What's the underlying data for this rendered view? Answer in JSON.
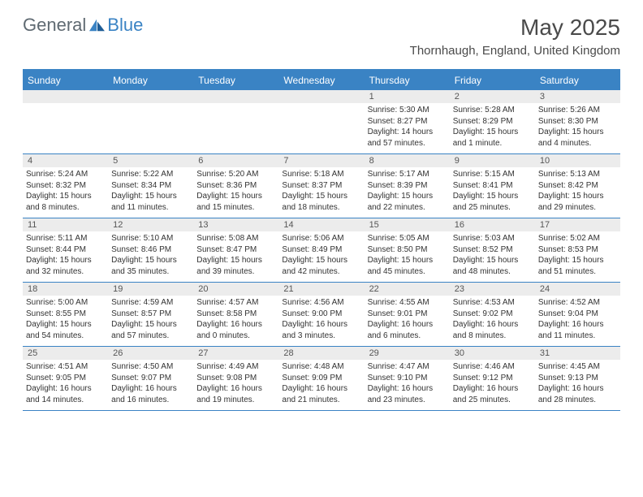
{
  "logo": {
    "general": "General",
    "blue": "Blue"
  },
  "title": "May 2025",
  "location": "Thornhaugh, England, United Kingdom",
  "colors": {
    "accent": "#3a83c4",
    "gray_row": "#ececec",
    "text_dark": "#4a4a4a",
    "text_body": "#333333",
    "logo_gray": "#5f6a72"
  },
  "day_headers": [
    "Sunday",
    "Monday",
    "Tuesday",
    "Wednesday",
    "Thursday",
    "Friday",
    "Saturday"
  ],
  "weeks": [
    [
      {
        "n": "",
        "lines": []
      },
      {
        "n": "",
        "lines": []
      },
      {
        "n": "",
        "lines": []
      },
      {
        "n": "",
        "lines": []
      },
      {
        "n": "1",
        "lines": [
          "Sunrise: 5:30 AM",
          "Sunset: 8:27 PM",
          "Daylight: 14 hours",
          "and 57 minutes."
        ]
      },
      {
        "n": "2",
        "lines": [
          "Sunrise: 5:28 AM",
          "Sunset: 8:29 PM",
          "Daylight: 15 hours",
          "and 1 minute."
        ]
      },
      {
        "n": "3",
        "lines": [
          "Sunrise: 5:26 AM",
          "Sunset: 8:30 PM",
          "Daylight: 15 hours",
          "and 4 minutes."
        ]
      }
    ],
    [
      {
        "n": "4",
        "lines": [
          "Sunrise: 5:24 AM",
          "Sunset: 8:32 PM",
          "Daylight: 15 hours",
          "and 8 minutes."
        ]
      },
      {
        "n": "5",
        "lines": [
          "Sunrise: 5:22 AM",
          "Sunset: 8:34 PM",
          "Daylight: 15 hours",
          "and 11 minutes."
        ]
      },
      {
        "n": "6",
        "lines": [
          "Sunrise: 5:20 AM",
          "Sunset: 8:36 PM",
          "Daylight: 15 hours",
          "and 15 minutes."
        ]
      },
      {
        "n": "7",
        "lines": [
          "Sunrise: 5:18 AM",
          "Sunset: 8:37 PM",
          "Daylight: 15 hours",
          "and 18 minutes."
        ]
      },
      {
        "n": "8",
        "lines": [
          "Sunrise: 5:17 AM",
          "Sunset: 8:39 PM",
          "Daylight: 15 hours",
          "and 22 minutes."
        ]
      },
      {
        "n": "9",
        "lines": [
          "Sunrise: 5:15 AM",
          "Sunset: 8:41 PM",
          "Daylight: 15 hours",
          "and 25 minutes."
        ]
      },
      {
        "n": "10",
        "lines": [
          "Sunrise: 5:13 AM",
          "Sunset: 8:42 PM",
          "Daylight: 15 hours",
          "and 29 minutes."
        ]
      }
    ],
    [
      {
        "n": "11",
        "lines": [
          "Sunrise: 5:11 AM",
          "Sunset: 8:44 PM",
          "Daylight: 15 hours",
          "and 32 minutes."
        ]
      },
      {
        "n": "12",
        "lines": [
          "Sunrise: 5:10 AM",
          "Sunset: 8:46 PM",
          "Daylight: 15 hours",
          "and 35 minutes."
        ]
      },
      {
        "n": "13",
        "lines": [
          "Sunrise: 5:08 AM",
          "Sunset: 8:47 PM",
          "Daylight: 15 hours",
          "and 39 minutes."
        ]
      },
      {
        "n": "14",
        "lines": [
          "Sunrise: 5:06 AM",
          "Sunset: 8:49 PM",
          "Daylight: 15 hours",
          "and 42 minutes."
        ]
      },
      {
        "n": "15",
        "lines": [
          "Sunrise: 5:05 AM",
          "Sunset: 8:50 PM",
          "Daylight: 15 hours",
          "and 45 minutes."
        ]
      },
      {
        "n": "16",
        "lines": [
          "Sunrise: 5:03 AM",
          "Sunset: 8:52 PM",
          "Daylight: 15 hours",
          "and 48 minutes."
        ]
      },
      {
        "n": "17",
        "lines": [
          "Sunrise: 5:02 AM",
          "Sunset: 8:53 PM",
          "Daylight: 15 hours",
          "and 51 minutes."
        ]
      }
    ],
    [
      {
        "n": "18",
        "lines": [
          "Sunrise: 5:00 AM",
          "Sunset: 8:55 PM",
          "Daylight: 15 hours",
          "and 54 minutes."
        ]
      },
      {
        "n": "19",
        "lines": [
          "Sunrise: 4:59 AM",
          "Sunset: 8:57 PM",
          "Daylight: 15 hours",
          "and 57 minutes."
        ]
      },
      {
        "n": "20",
        "lines": [
          "Sunrise: 4:57 AM",
          "Sunset: 8:58 PM",
          "Daylight: 16 hours",
          "and 0 minutes."
        ]
      },
      {
        "n": "21",
        "lines": [
          "Sunrise: 4:56 AM",
          "Sunset: 9:00 PM",
          "Daylight: 16 hours",
          "and 3 minutes."
        ]
      },
      {
        "n": "22",
        "lines": [
          "Sunrise: 4:55 AM",
          "Sunset: 9:01 PM",
          "Daylight: 16 hours",
          "and 6 minutes."
        ]
      },
      {
        "n": "23",
        "lines": [
          "Sunrise: 4:53 AM",
          "Sunset: 9:02 PM",
          "Daylight: 16 hours",
          "and 8 minutes."
        ]
      },
      {
        "n": "24",
        "lines": [
          "Sunrise: 4:52 AM",
          "Sunset: 9:04 PM",
          "Daylight: 16 hours",
          "and 11 minutes."
        ]
      }
    ],
    [
      {
        "n": "25",
        "lines": [
          "Sunrise: 4:51 AM",
          "Sunset: 9:05 PM",
          "Daylight: 16 hours",
          "and 14 minutes."
        ]
      },
      {
        "n": "26",
        "lines": [
          "Sunrise: 4:50 AM",
          "Sunset: 9:07 PM",
          "Daylight: 16 hours",
          "and 16 minutes."
        ]
      },
      {
        "n": "27",
        "lines": [
          "Sunrise: 4:49 AM",
          "Sunset: 9:08 PM",
          "Daylight: 16 hours",
          "and 19 minutes."
        ]
      },
      {
        "n": "28",
        "lines": [
          "Sunrise: 4:48 AM",
          "Sunset: 9:09 PM",
          "Daylight: 16 hours",
          "and 21 minutes."
        ]
      },
      {
        "n": "29",
        "lines": [
          "Sunrise: 4:47 AM",
          "Sunset: 9:10 PM",
          "Daylight: 16 hours",
          "and 23 minutes."
        ]
      },
      {
        "n": "30",
        "lines": [
          "Sunrise: 4:46 AM",
          "Sunset: 9:12 PM",
          "Daylight: 16 hours",
          "and 25 minutes."
        ]
      },
      {
        "n": "31",
        "lines": [
          "Sunrise: 4:45 AM",
          "Sunset: 9:13 PM",
          "Daylight: 16 hours",
          "and 28 minutes."
        ]
      }
    ]
  ]
}
